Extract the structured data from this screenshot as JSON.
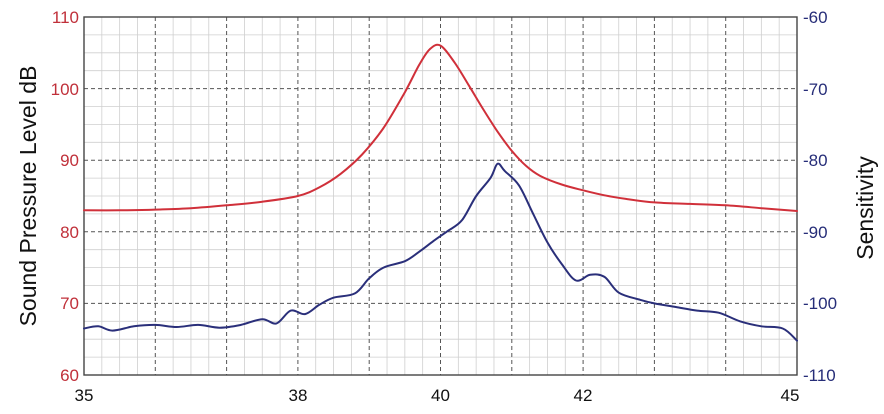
{
  "chart_data": {
    "type": "line",
    "title": "",
    "xlabel": "",
    "ylabel": "Sound Pressure Level dB",
    "y2label": "Sensitivity",
    "xlim": [
      35,
      45
    ],
    "ylim": [
      60,
      110
    ],
    "y2lim": [
      -110,
      -60
    ],
    "x_ticks": [
      "35",
      "38",
      "40",
      "42",
      "45"
    ],
    "y_ticks": [
      "60",
      "70",
      "80",
      "90",
      "100",
      "110"
    ],
    "y2_ticks": [
      "-60",
      "-70",
      "-80",
      "-90",
      "-100",
      "-110"
    ],
    "grid": true,
    "colors": {
      "spl": "#d0303a",
      "sensitivity": "#2a2f7a",
      "left_axis": "#c0303a",
      "right_axis": "#262d78"
    },
    "series": [
      {
        "axis": "left",
        "x": [
          35.0,
          35.5,
          36.0,
          36.5,
          37.0,
          37.5,
          38.0,
          38.3,
          38.6,
          38.9,
          39.2,
          39.5,
          39.7,
          39.85,
          40.0,
          40.2,
          40.4,
          40.6,
          40.8,
          41.0,
          41.2,
          41.4,
          41.7,
          42.0,
          42.3,
          42.6,
          43.0,
          43.5,
          44.0,
          44.5,
          45.0
        ],
        "values": [
          83.0,
          83.0,
          83.1,
          83.3,
          83.7,
          84.2,
          85.0,
          86.2,
          88.1,
          90.8,
          94.5,
          99.5,
          103.3,
          105.5,
          106.0,
          103.6,
          100.4,
          97.1,
          94.0,
          91.3,
          89.2,
          87.8,
          86.6,
          85.8,
          85.1,
          84.6,
          84.1,
          83.9,
          83.7,
          83.3,
          82.9
        ]
      },
      {
        "axis": "right",
        "x": [
          35.0,
          35.2,
          35.4,
          35.7,
          36.0,
          36.3,
          36.6,
          36.9,
          37.2,
          37.5,
          37.7,
          37.9,
          38.1,
          38.3,
          38.5,
          38.8,
          39.0,
          39.2,
          39.5,
          39.7,
          39.9,
          40.1,
          40.3,
          40.5,
          40.7,
          40.8,
          40.9,
          41.1,
          41.3,
          41.5,
          41.7,
          41.9,
          42.1,
          42.3,
          42.5,
          42.8,
          43.0,
          43.3,
          43.6,
          43.9,
          44.2,
          44.5,
          44.8,
          45.0
        ],
        "values": [
          -103.5,
          -103.2,
          -103.8,
          -103.2,
          -103.0,
          -103.3,
          -103.0,
          -103.4,
          -103.0,
          -102.2,
          -102.8,
          -101.0,
          -101.5,
          -100.2,
          -99.2,
          -98.6,
          -96.5,
          -95.0,
          -94.1,
          -92.8,
          -91.3,
          -89.9,
          -88.4,
          -85.0,
          -82.5,
          -80.5,
          -81.5,
          -83.5,
          -87.5,
          -91.5,
          -94.5,
          -96.8,
          -96.0,
          -96.3,
          -98.5,
          -99.5,
          -100.0,
          -100.5,
          -101.0,
          -101.3,
          -102.5,
          -103.2,
          -103.5,
          -105.2
        ]
      }
    ]
  }
}
